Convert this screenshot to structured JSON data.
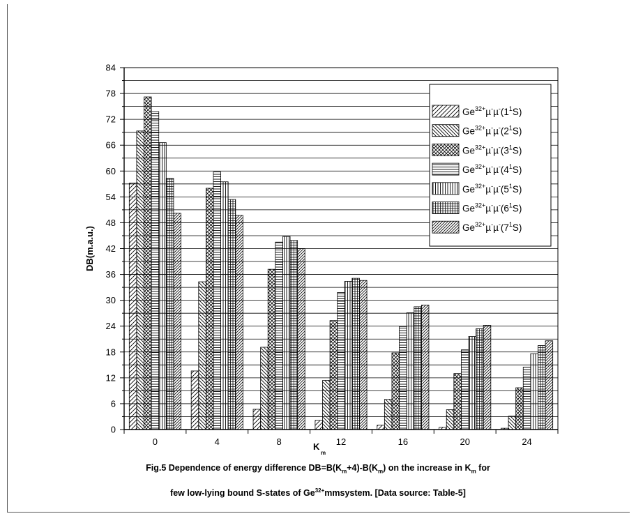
{
  "chart_data": {
    "type": "bar",
    "xlabel": "K",
    "xlabel_sub": "m",
    "ylabel": "DB(m.a.u.)",
    "ylim": [
      0,
      84
    ],
    "yticks": [
      0,
      6,
      12,
      18,
      24,
      30,
      36,
      42,
      48,
      54,
      60,
      66,
      72,
      78,
      84
    ],
    "grid": "horizontal",
    "legend_position": "top-right",
    "categories": [
      "0",
      "4",
      "8",
      "12",
      "16",
      "20",
      "24"
    ],
    "series": [
      {
        "name": "Ge32+µ-µ-(1¹S)",
        "label_base": "Ge",
        "label_sup": "32+",
        "label_mid": "µ",
        "label_sup2": "-",
        "label_mid2": "µ",
        "label_sup3": "-",
        "label_state": "(1",
        "label_state_sup": "1",
        "label_end": "S)",
        "pattern": "diag-fwd-sparse",
        "values": [
          57.2,
          13.6,
          4.7,
          2.1,
          1.0,
          0.5,
          0.3
        ]
      },
      {
        "name": "Ge32+µ-µ-(2¹S)",
        "label_base": "Ge",
        "label_sup": "32+",
        "label_mid": "µ",
        "label_sup2": "-",
        "label_mid2": "µ",
        "label_sup3": "-",
        "label_state": "(2",
        "label_state_sup": "1",
        "label_end": "S)",
        "pattern": "diag-back",
        "values": [
          69.3,
          34.3,
          19.1,
          11.4,
          7.0,
          4.6,
          3.1
        ]
      },
      {
        "name": "Ge32+µ-µ-(3¹S)",
        "label_base": "Ge",
        "label_sup": "32+",
        "label_mid": "µ",
        "label_sup2": "-",
        "label_mid2": "µ",
        "label_sup3": "-",
        "label_state": "(3",
        "label_state_sup": "1",
        "label_end": "S)",
        "pattern": "crosshatch",
        "values": [
          77.2,
          56.0,
          37.2,
          25.3,
          17.8,
          13.0,
          9.7
        ]
      },
      {
        "name": "Ge32+µ-µ-(4¹S)",
        "label_base": "Ge",
        "label_sup": "32+",
        "label_mid": "µ",
        "label_sup2": "-",
        "label_mid2": "µ",
        "label_sup3": "-",
        "label_state": "(4",
        "label_state_sup": "1",
        "label_end": "S)",
        "pattern": "horizontal",
        "values": [
          73.8,
          59.8,
          43.5,
          31.8,
          23.9,
          18.5,
          14.5
        ]
      },
      {
        "name": "Ge32+µ-µ-(5¹S)",
        "label_base": "Ge",
        "label_sup": "32+",
        "label_mid": "µ",
        "label_sup2": "-",
        "label_mid2": "µ",
        "label_sup3": "-",
        "label_state": "(5",
        "label_state_sup": "1",
        "label_end": "S)",
        "pattern": "vertical",
        "values": [
          66.6,
          57.5,
          44.8,
          34.4,
          27.1,
          21.6,
          17.6
        ]
      },
      {
        "name": "Ge32+µ-µ-(6¹S)",
        "label_base": "Ge",
        "label_sup": "32+",
        "label_mid": "µ",
        "label_sup2": "-",
        "label_mid2": "µ",
        "label_sup3": "-",
        "label_state": "(6",
        "label_state_sup": "1",
        "label_end": "S)",
        "pattern": "grid",
        "values": [
          58.3,
          53.4,
          43.9,
          35.1,
          28.5,
          23.4,
          19.5
        ]
      },
      {
        "name": "Ge32+µ-µ-(7¹S)",
        "label_base": "Ge",
        "label_sup": "32+",
        "label_mid": "µ",
        "label_sup2": "-",
        "label_mid2": "µ",
        "label_sup3": "-",
        "label_state": "(7",
        "label_state_sup": "1",
        "label_end": "S)",
        "pattern": "diag-fwd-dense",
        "values": [
          50.2,
          49.7,
          42.0,
          34.6,
          28.9,
          24.2,
          20.6
        ]
      }
    ]
  },
  "caption": {
    "line1_a": "Fig.5  Dependence of energy difference DB=B(K",
    "line1_sub1": "m",
    "line1_b": "+4)-B(K",
    "line1_sub2": "m",
    "line1_c": ") on the increase in K",
    "line1_sub3": "m",
    "line1_d": " for",
    "line2_a": "few low-lying bound S-states of Ge",
    "line2_sup": "32+",
    "line2_b": "mm",
    "line2_c": "system. [Data source: Table-5]"
  }
}
